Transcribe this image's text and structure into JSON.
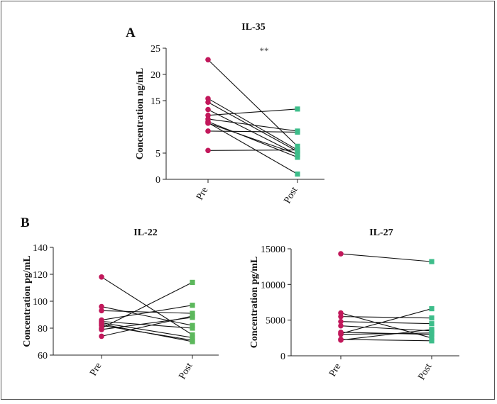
{
  "panels": {
    "a_label": "A",
    "b_label": "B"
  },
  "colors": {
    "pre_marker": "#c2185b",
    "post_marker": "#3dbd8a",
    "post_marker_b": "#5cb85c",
    "line": "#111111",
    "axis": "#222222"
  },
  "chart_data": [
    {
      "type": "paired-line",
      "title": "IL-35",
      "ylabel": "Concentration ng/mL",
      "xlabel": "",
      "categories": [
        "Pre",
        "Post"
      ],
      "ylim": [
        0,
        25
      ],
      "yticks": [
        0,
        5,
        15,
        20,
        25
      ],
      "annotation": "**",
      "pairs": [
        [
          22.8,
          6.3
        ],
        [
          15.4,
          5.6
        ],
        [
          14.7,
          5.3
        ],
        [
          13.3,
          4.7
        ],
        [
          12.2,
          13.4
        ],
        [
          11.5,
          9.2
        ],
        [
          11.0,
          4.2
        ],
        [
          10.7,
          4.8
        ],
        [
          9.2,
          9.0
        ],
        [
          5.5,
          5.6
        ],
        [
          10.8,
          1.0
        ]
      ]
    },
    {
      "type": "paired-line",
      "title": "IL-22",
      "ylabel": "Concentration pg/mL",
      "xlabel": "",
      "categories": [
        "Pre",
        "Post"
      ],
      "ylim": [
        60,
        140
      ],
      "yticks": [
        60,
        80,
        100,
        120,
        140
      ],
      "pairs": [
        [
          118,
          75
        ],
        [
          96,
          82
        ],
        [
          93,
          91
        ],
        [
          86,
          97
        ],
        [
          85,
          80
        ],
        [
          84,
          73
        ],
        [
          82,
          71
        ],
        [
          80,
          114
        ],
        [
          79,
          88
        ],
        [
          74,
          89
        ],
        [
          83,
          70
        ]
      ]
    },
    {
      "type": "paired-line",
      "title": "IL-27",
      "ylabel": "Concentration pg/mL",
      "xlabel": "",
      "categories": [
        "Pre",
        "Post"
      ],
      "ylim": [
        0,
        15000
      ],
      "yticks": [
        0,
        5000,
        10000,
        15000
      ],
      "pairs": [
        [
          14300,
          13200
        ],
        [
          6000,
          2500
        ],
        [
          5500,
          5300
        ],
        [
          4800,
          4500
        ],
        [
          4200,
          3500
        ],
        [
          3300,
          3000
        ],
        [
          3100,
          6600
        ],
        [
          3000,
          3200
        ],
        [
          2300,
          2100
        ],
        [
          2200,
          3700
        ]
      ]
    }
  ]
}
